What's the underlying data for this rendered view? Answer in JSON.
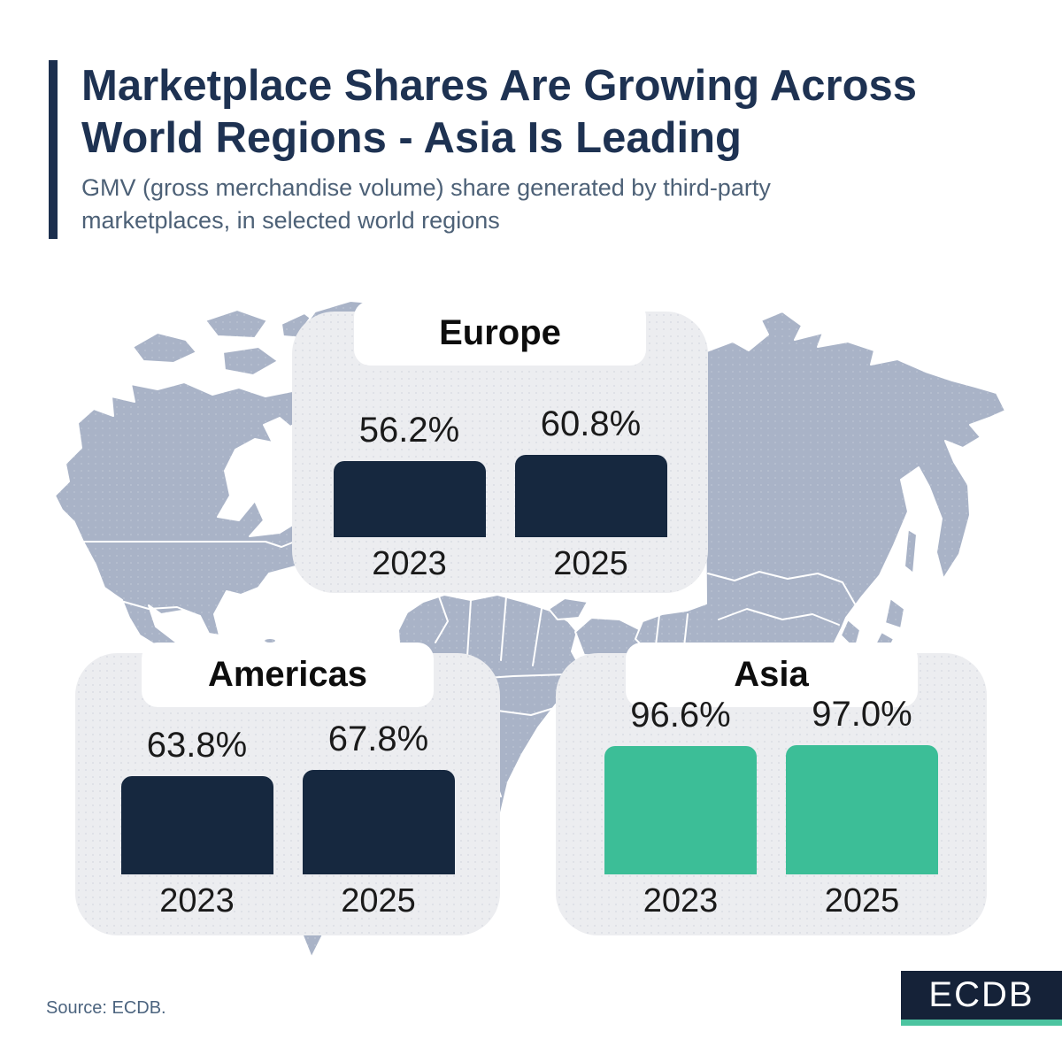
{
  "header": {
    "title": "Marketplace Shares Are Growing Across World Regions - Asia Is Leading",
    "subtitle": "GMV (gross merchandise volume) share generated by third-party marketplaces, in selected world regions"
  },
  "cards": [
    {
      "region": "Europe",
      "bar_color": "#16283f",
      "bars": [
        {
          "year": "2023",
          "share": 56.2,
          "share_label": "56.2%"
        },
        {
          "year": "2025",
          "share": 60.8,
          "share_label": "60.8%"
        }
      ]
    },
    {
      "region": "Americas",
      "bar_color": "#16283f",
      "bars": [
        {
          "year": "2023",
          "share": 63.8,
          "share_label": "63.8%"
        },
        {
          "year": "2025",
          "share": 67.8,
          "share_label": "67.8%"
        }
      ]
    },
    {
      "region": "Asia",
      "bar_color": "#3cbe97",
      "bars": [
        {
          "year": "2023",
          "share": 96.6,
          "share_label": "96.6%"
        },
        {
          "year": "2025",
          "share": 97.0,
          "share_label": "97.0%"
        }
      ]
    }
  ],
  "footer": {
    "source": "Source: ECDB.",
    "logo_text": "ECDB"
  },
  "colors": {
    "navy_bar": "#16283f",
    "green_bar": "#3cbe97",
    "map_land": "#a9b3c7",
    "card_bg": "#ecedf0",
    "title_text": "#1e3252",
    "subtitle_text": "#4d6177",
    "logo_bg": "#152238",
    "logo_underline": "#4cc4a0"
  },
  "chart_data": [
    {
      "type": "bar",
      "title": "Europe",
      "categories": [
        "2023",
        "2025"
      ],
      "values": [
        56.2,
        60.8
      ],
      "unit": "%",
      "ylim": [
        0,
        100
      ],
      "grid": false,
      "legend": "none"
    },
    {
      "type": "bar",
      "title": "Americas",
      "categories": [
        "2023",
        "2025"
      ],
      "values": [
        63.8,
        67.8
      ],
      "unit": "%",
      "ylim": [
        0,
        100
      ],
      "grid": false,
      "legend": "none"
    },
    {
      "type": "bar",
      "title": "Asia",
      "categories": [
        "2023",
        "2025"
      ],
      "values": [
        96.6,
        97.0
      ],
      "unit": "%",
      "ylim": [
        0,
        100
      ],
      "grid": false,
      "legend": "none"
    }
  ]
}
